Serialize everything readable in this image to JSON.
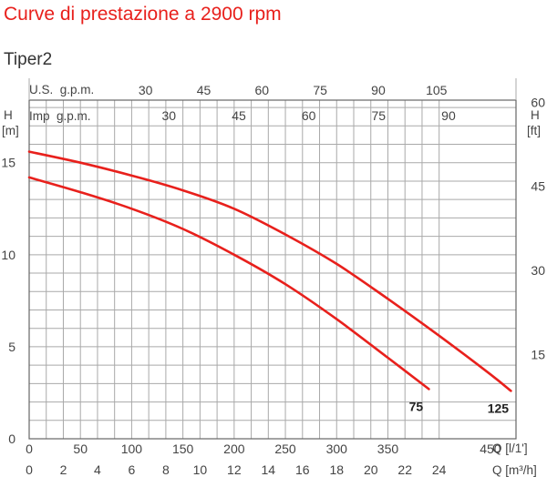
{
  "title": "Curve di prestazione a 2900 rpm",
  "model": "Tiper2",
  "colors": {
    "title": "#e8201c",
    "curve": "#e8201c",
    "grid": "#a9a9a9",
    "text": "#444444"
  },
  "chart_data": {
    "type": "line",
    "grid": true,
    "axes": {
      "y_left": {
        "label_top": "H",
        "unit": "[m]",
        "ticks": [
          "0",
          "5",
          "10",
          "15"
        ],
        "ylim": [
          0,
          18.4
        ]
      },
      "y_right": {
        "label_top": "H",
        "unit": "[ft]",
        "ticks": [
          "15",
          "30",
          "45",
          "60"
        ]
      },
      "x_lmin": {
        "label": "Q [l/1']",
        "ticks": [
          "0",
          "50",
          "100",
          "150",
          "200",
          "250",
          "300",
          "350",
          "450"
        ],
        "values": [
          0,
          50,
          100,
          150,
          200,
          250,
          300,
          350,
          450
        ],
        "xlim": [
          0,
          475
        ]
      },
      "x_m3h": {
        "label": "Q [m³/h]",
        "ticks": [
          "0",
          "2",
          "4",
          "6",
          "8",
          "10",
          "12",
          "14",
          "16",
          "18",
          "20",
          "22",
          "24"
        ]
      },
      "top_us": {
        "label": "U.S.  g.p.m.",
        "ticks": [
          "30",
          "45",
          "60",
          "75",
          "90",
          "105"
        ]
      },
      "top_imp": {
        "label": "Imp  g.p.m.",
        "ticks": [
          "30",
          "45",
          "60",
          "75",
          "90"
        ]
      }
    },
    "series": [
      {
        "name": "125",
        "x": [
          0,
          50,
          100,
          150,
          200,
          250,
          300,
          350,
          400,
          450,
          470
        ],
        "y": [
          15.6,
          15.0,
          14.3,
          13.5,
          12.5,
          11.1,
          9.5,
          7.6,
          5.6,
          3.5,
          2.6
        ]
      },
      {
        "name": "75",
        "x": [
          0,
          50,
          100,
          150,
          200,
          250,
          300,
          350,
          390
        ],
        "y": [
          14.2,
          13.4,
          12.5,
          11.4,
          10.0,
          8.4,
          6.5,
          4.4,
          2.7
        ]
      }
    ]
  }
}
